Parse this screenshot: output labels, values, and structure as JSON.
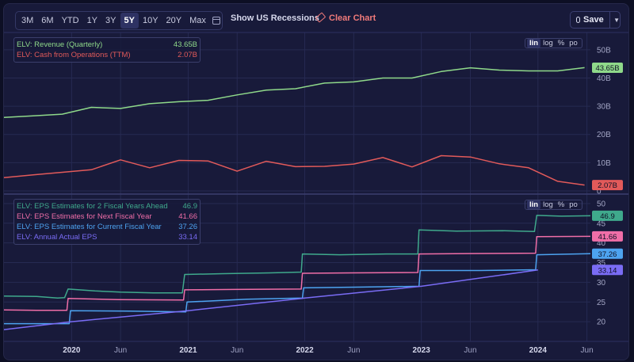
{
  "toolbar": {
    "ranges": [
      "3M",
      "6M",
      "YTD",
      "1Y",
      "3Y",
      "5Y",
      "10Y",
      "20Y",
      "Max"
    ],
    "active_range": "5Y",
    "recessions_label": "Show US Recessions",
    "clear_label": "Clear Chart",
    "save_label": "Save",
    "calendar_icon": "calendar-icon",
    "eraser_icon": "eraser-icon",
    "cloud_icon": "cloud-icon",
    "chevron_icon": "chevron-down-icon"
  },
  "scale_options": [
    "lin",
    "log",
    "%",
    "po"
  ],
  "active_scale": "lin",
  "chart_data": [
    {
      "type": "line",
      "ylim": [
        0,
        55
      ],
      "yticks": [
        0,
        10,
        20,
        30,
        40,
        50
      ],
      "ytick_labels": [
        "0",
        "10B",
        "20B",
        "30B",
        "40B",
        "50B"
      ],
      "legend": [
        {
          "label": "ELV: Revenue (Quarterly)",
          "value": "43.65B",
          "color": "#8fd98a"
        },
        {
          "label": "ELV: Cash from Operations (TTM)",
          "value": "2.07B",
          "color": "#e25a5a"
        }
      ],
      "series": [
        {
          "name": "ELV: Revenue (Quarterly)",
          "color": "#8fd98a",
          "end_label": "43.65B",
          "points": [
            [
              2019.42,
              26.0
            ],
            [
              2019.67,
              26.6
            ],
            [
              2019.92,
              27.2
            ],
            [
              2020.17,
              29.6
            ],
            [
              2020.42,
              29.2
            ],
            [
              2020.67,
              30.9
            ],
            [
              2020.92,
              31.6
            ],
            [
              2021.17,
              32.1
            ],
            [
              2021.42,
              34.0
            ],
            [
              2021.67,
              35.7
            ],
            [
              2021.92,
              36.2
            ],
            [
              2022.17,
              38.2
            ],
            [
              2022.42,
              38.6
            ],
            [
              2022.67,
              40.0
            ],
            [
              2022.92,
              40.0
            ],
            [
              2023.17,
              42.3
            ],
            [
              2023.42,
              43.6
            ],
            [
              2023.67,
              42.8
            ],
            [
              2023.92,
              42.5
            ],
            [
              2024.17,
              42.5
            ],
            [
              2024.4,
              43.65
            ]
          ]
        },
        {
          "name": "ELV: Cash from Operations (TTM)",
          "color": "#e25a5a",
          "end_label": "2.07B",
          "points": [
            [
              2019.42,
              4.7
            ],
            [
              2019.67,
              5.7
            ],
            [
              2019.92,
              6.6
            ],
            [
              2020.17,
              7.5
            ],
            [
              2020.42,
              11.0
            ],
            [
              2020.67,
              8.2
            ],
            [
              2020.92,
              10.8
            ],
            [
              2021.17,
              10.6
            ],
            [
              2021.42,
              7.0
            ],
            [
              2021.67,
              10.5
            ],
            [
              2021.92,
              8.6
            ],
            [
              2022.17,
              8.7
            ],
            [
              2022.42,
              9.5
            ],
            [
              2022.67,
              11.8
            ],
            [
              2022.92,
              8.5
            ],
            [
              2023.17,
              12.5
            ],
            [
              2023.42,
              12.0
            ],
            [
              2023.67,
              9.6
            ],
            [
              2023.92,
              8.2
            ],
            [
              2024.17,
              3.4
            ],
            [
              2024.4,
              2.07
            ]
          ]
        }
      ]
    },
    {
      "type": "line",
      "ylim": [
        15,
        52
      ],
      "yticks": [
        20,
        25,
        30,
        35,
        40,
        45,
        50
      ],
      "ytick_labels": [
        "20",
        "25",
        "30",
        "35",
        "40",
        "45",
        "50"
      ],
      "xlim": [
        2019.42,
        2024.45
      ],
      "xticks": [
        2020.0,
        2020.42,
        2021.0,
        2021.42,
        2022.0,
        2022.42,
        2023.0,
        2023.42,
        2024.0,
        2024.42
      ],
      "xtick_labels": [
        "2020",
        "Jun",
        "2021",
        "Jun",
        "2022",
        "Jun",
        "2023",
        "Jun",
        "2024",
        "Jun"
      ],
      "legend": [
        {
          "label": "ELV: EPS Estimates for 2 Fiscal Years Ahead",
          "value": "46.9",
          "color": "#3fa98c"
        },
        {
          "label": "ELV: EPS Estimates for Next Fiscal Year",
          "value": "41.66",
          "color": "#f06ea8"
        },
        {
          "label": "ELV: EPS Estimates for Current Fiscal Year",
          "value": "37.26",
          "color": "#4da3f0"
        },
        {
          "label": "ELV: Annual Actual EPS",
          "value": "33.14",
          "color": "#7a6cf5"
        }
      ],
      "series": [
        {
          "name": "ELV: EPS Estimates for 2 Fiscal Years Ahead",
          "color": "#3fa98c",
          "end_label": "46.9",
          "points": [
            [
              2019.42,
              26.5
            ],
            [
              2019.7,
              26.4
            ],
            [
              2019.88,
              26.0
            ],
            [
              2019.94,
              26.1
            ],
            [
              2019.97,
              28.3
            ],
            [
              2020.2,
              27.8
            ],
            [
              2020.42,
              27.5
            ],
            [
              2020.7,
              27.3
            ],
            [
              2020.95,
              27.3
            ],
            [
              2020.97,
              32.0
            ],
            [
              2021.3,
              32.2
            ],
            [
              2021.7,
              32.4
            ],
            [
              2021.97,
              32.6
            ],
            [
              2021.98,
              37.2
            ],
            [
              2022.3,
              37.0
            ],
            [
              2022.7,
              37.2
            ],
            [
              2022.97,
              37.2
            ],
            [
              2022.98,
              43.3
            ],
            [
              2023.3,
              43.0
            ],
            [
              2023.7,
              43.1
            ],
            [
              2023.97,
              42.9
            ],
            [
              2023.99,
              47.0
            ],
            [
              2024.2,
              46.8
            ],
            [
              2024.45,
              46.9
            ]
          ]
        },
        {
          "name": "ELV: EPS Estimates for Next Fiscal Year",
          "color": "#f06ea8",
          "end_label": "41.66",
          "points": [
            [
              2019.42,
              23.0
            ],
            [
              2019.7,
              22.9
            ],
            [
              2019.96,
              22.9
            ],
            [
              2019.97,
              25.9
            ],
            [
              2020.4,
              25.6
            ],
            [
              2020.96,
              25.5
            ],
            [
              2020.97,
              28.1
            ],
            [
              2021.4,
              28.2
            ],
            [
              2021.97,
              28.3
            ],
            [
              2021.98,
              32.3
            ],
            [
              2022.4,
              32.4
            ],
            [
              2022.97,
              32.5
            ],
            [
              2022.98,
              37.2
            ],
            [
              2023.4,
              37.3
            ],
            [
              2023.98,
              37.4
            ],
            [
              2023.99,
              41.6
            ],
            [
              2024.45,
              41.66
            ]
          ]
        },
        {
          "name": "ELV: EPS Estimates for Current Fiscal Year",
          "color": "#4da3f0",
          "end_label": "37.26",
          "points": [
            [
              2019.42,
              19.5
            ],
            [
              2019.7,
              19.5
            ],
            [
              2019.98,
              19.5
            ],
            [
              2019.99,
              22.8
            ],
            [
              2020.5,
              22.7
            ],
            [
              2020.98,
              22.5
            ],
            [
              2020.99,
              25.0
            ],
            [
              2021.5,
              25.7
            ],
            [
              2021.98,
              26.0
            ],
            [
              2021.99,
              28.6
            ],
            [
              2022.5,
              28.8
            ],
            [
              2022.98,
              29.0
            ],
            [
              2022.99,
              33.0
            ],
            [
              2023.5,
              33.0
            ],
            [
              2023.98,
              33.2
            ],
            [
              2023.99,
              37.0
            ],
            [
              2024.45,
              37.26
            ]
          ]
        },
        {
          "name": "ELV: Annual Actual EPS",
          "color": "#7a6cf5",
          "end_label": "33.14",
          "points": [
            [
              2019.42,
              18.0
            ],
            [
              2020.0,
              20.0
            ],
            [
              2021.0,
              22.8
            ],
            [
              2022.0,
              26.0
            ],
            [
              2023.0,
              29.0
            ],
            [
              2024.0,
              33.14
            ]
          ]
        }
      ]
    }
  ]
}
